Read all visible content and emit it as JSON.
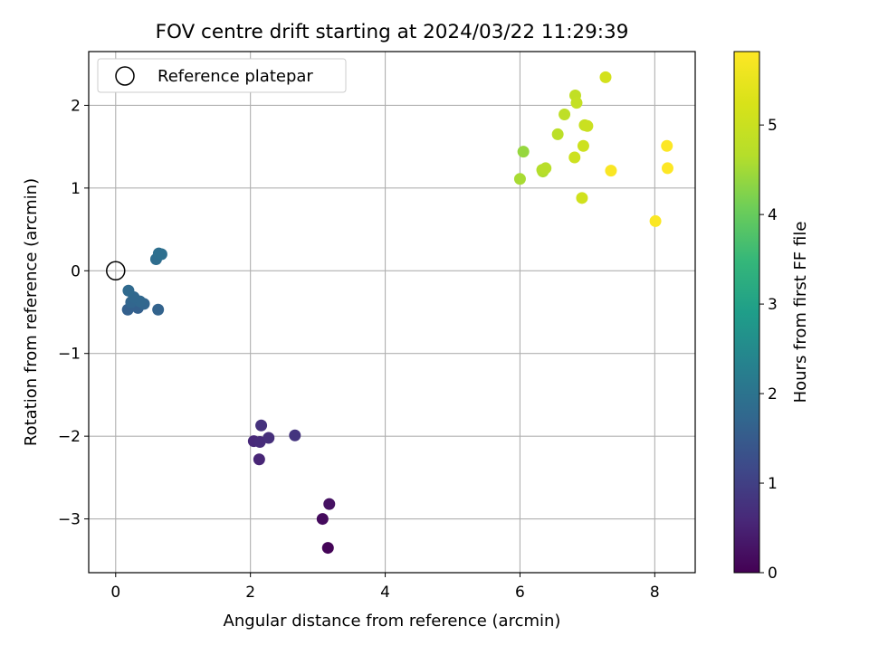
{
  "chart_data": {
    "type": "scatter",
    "title": "FOV centre drift starting at 2024/03/22 11:29:39",
    "xlabel": "Angular distance from reference (arcmin)",
    "ylabel": "Rotation from reference (arcmin)",
    "xlim": [
      -0.4,
      8.6
    ],
    "ylim": [
      -3.65,
      2.65
    ],
    "xticks": [
      0,
      2,
      4,
      6,
      8
    ],
    "xtick_labels": [
      "0",
      "2",
      "4",
      "6",
      "8"
    ],
    "yticks": [
      -3,
      -2,
      -1,
      0,
      1,
      2
    ],
    "ytick_labels": [
      "−3",
      "−2",
      "−1",
      "0",
      "1",
      "2"
    ],
    "grid": true,
    "legend": {
      "placement": "top-left",
      "entries": [
        {
          "label": "Reference platepar",
          "marker": "open-circle"
        }
      ]
    },
    "reference_point": {
      "x": 0,
      "y": 0
    },
    "colorbar": {
      "label": "Hours from first FF file",
      "colormap": "viridis",
      "range": [
        0,
        5.82
      ],
      "ticks": [
        0,
        1,
        2,
        3,
        4,
        5
      ],
      "tick_labels": [
        "0",
        "1",
        "2",
        "3",
        "4",
        "5"
      ]
    },
    "points": [
      {
        "x": 3.15,
        "y": -3.35,
        "hours": 0.05
      },
      {
        "x": 3.07,
        "y": -3.0,
        "hours": 0.15
      },
      {
        "x": 3.17,
        "y": -2.82,
        "hours": 0.25
      },
      {
        "x": 2.13,
        "y": -2.28,
        "hours": 0.55
      },
      {
        "x": 2.05,
        "y": -2.06,
        "hours": 0.6
      },
      {
        "x": 2.14,
        "y": -2.07,
        "hours": 0.65
      },
      {
        "x": 2.27,
        "y": -2.02,
        "hours": 0.7
      },
      {
        "x": 2.16,
        "y": -1.87,
        "hours": 0.75
      },
      {
        "x": 2.66,
        "y": -1.99,
        "hours": 0.8
      },
      {
        "x": 0.18,
        "y": -0.47,
        "hours": 1.6
      },
      {
        "x": 0.33,
        "y": -0.45,
        "hours": 1.6
      },
      {
        "x": 0.63,
        "y": -0.47,
        "hours": 1.65
      },
      {
        "x": 0.42,
        "y": -0.4,
        "hours": 1.7
      },
      {
        "x": 0.23,
        "y": -0.38,
        "hours": 1.7
      },
      {
        "x": 0.36,
        "y": -0.37,
        "hours": 1.75
      },
      {
        "x": 0.27,
        "y": -0.32,
        "hours": 1.75
      },
      {
        "x": 0.19,
        "y": -0.24,
        "hours": 1.8
      },
      {
        "x": 0.6,
        "y": 0.14,
        "hours": 1.85
      },
      {
        "x": 0.64,
        "y": 0.21,
        "hours": 1.9
      },
      {
        "x": 0.68,
        "y": 0.2,
        "hours": 1.9
      },
      {
        "x": 6.05,
        "y": 1.44,
        "hours": 4.4
      },
      {
        "x": 6.0,
        "y": 1.11,
        "hours": 4.55
      },
      {
        "x": 6.34,
        "y": 1.2,
        "hours": 4.6
      },
      {
        "x": 6.33,
        "y": 1.22,
        "hours": 4.65
      },
      {
        "x": 6.38,
        "y": 1.24,
        "hours": 4.7
      },
      {
        "x": 6.56,
        "y": 1.65,
        "hours": 4.75
      },
      {
        "x": 6.66,
        "y": 1.89,
        "hours": 4.8
      },
      {
        "x": 6.82,
        "y": 2.12,
        "hours": 4.85
      },
      {
        "x": 6.84,
        "y": 2.03,
        "hours": 4.9
      },
      {
        "x": 6.96,
        "y": 1.76,
        "hours": 4.95
      },
      {
        "x": 7.0,
        "y": 1.75,
        "hours": 5.0
      },
      {
        "x": 6.94,
        "y": 1.51,
        "hours": 5.05
      },
      {
        "x": 6.81,
        "y": 1.37,
        "hours": 5.05
      },
      {
        "x": 6.92,
        "y": 0.88,
        "hours": 5.1
      },
      {
        "x": 7.27,
        "y": 2.34,
        "hours": 5.15
      },
      {
        "x": 7.35,
        "y": 1.21,
        "hours": 5.75
      },
      {
        "x": 8.01,
        "y": 0.6,
        "hours": 5.78
      },
      {
        "x": 8.18,
        "y": 1.51,
        "hours": 5.8
      },
      {
        "x": 8.19,
        "y": 1.24,
        "hours": 5.82
      }
    ]
  }
}
